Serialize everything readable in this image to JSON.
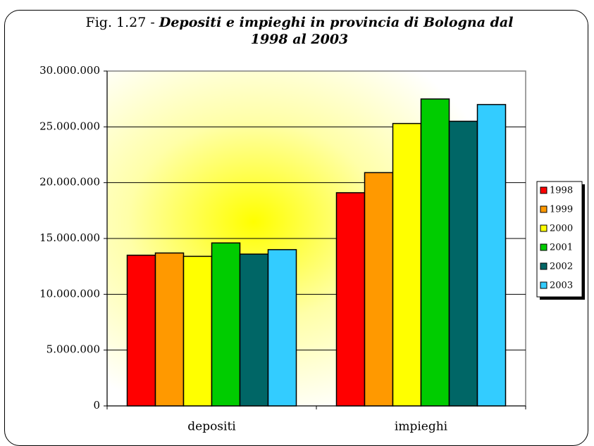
{
  "chart_data": {
    "type": "bar",
    "figure": "Fig. 1.27 -",
    "title": "Depositi e impieghi in provincia di Bologna dal 1998 al 2003",
    "categories": [
      "depositi",
      "impieghi"
    ],
    "series": [
      {
        "name": "1998",
        "color": "#ff0000",
        "values": [
          13500000,
          19100000
        ]
      },
      {
        "name": "1999",
        "color": "#ff9900",
        "values": [
          13700000,
          20900000
        ]
      },
      {
        "name": "2000",
        "color": "#ffff00",
        "values": [
          13400000,
          25300000
        ]
      },
      {
        "name": "2001",
        "color": "#00cc00",
        "values": [
          14600000,
          27500000
        ]
      },
      {
        "name": "2002",
        "color": "#006666",
        "values": [
          13600000,
          25500000
        ]
      },
      {
        "name": "2003",
        "color": "#33ccff",
        "values": [
          14000000,
          27000000
        ]
      }
    ],
    "ylim": [
      0,
      30000000
    ],
    "yticks": [
      0,
      {
        "value": 5000000,
        "label": "5.000.000"
      },
      {
        "value": 10000000,
        "label": "10.000.000"
      },
      {
        "value": 15000000,
        "label": "15.000.000"
      },
      {
        "value": 20000000,
        "label": "20.000.000"
      },
      {
        "value": 25000000,
        "label": "25.000.000"
      },
      {
        "value": 30000000,
        "label": "30.000.000"
      }
    ],
    "grid": true,
    "legend": "right"
  }
}
